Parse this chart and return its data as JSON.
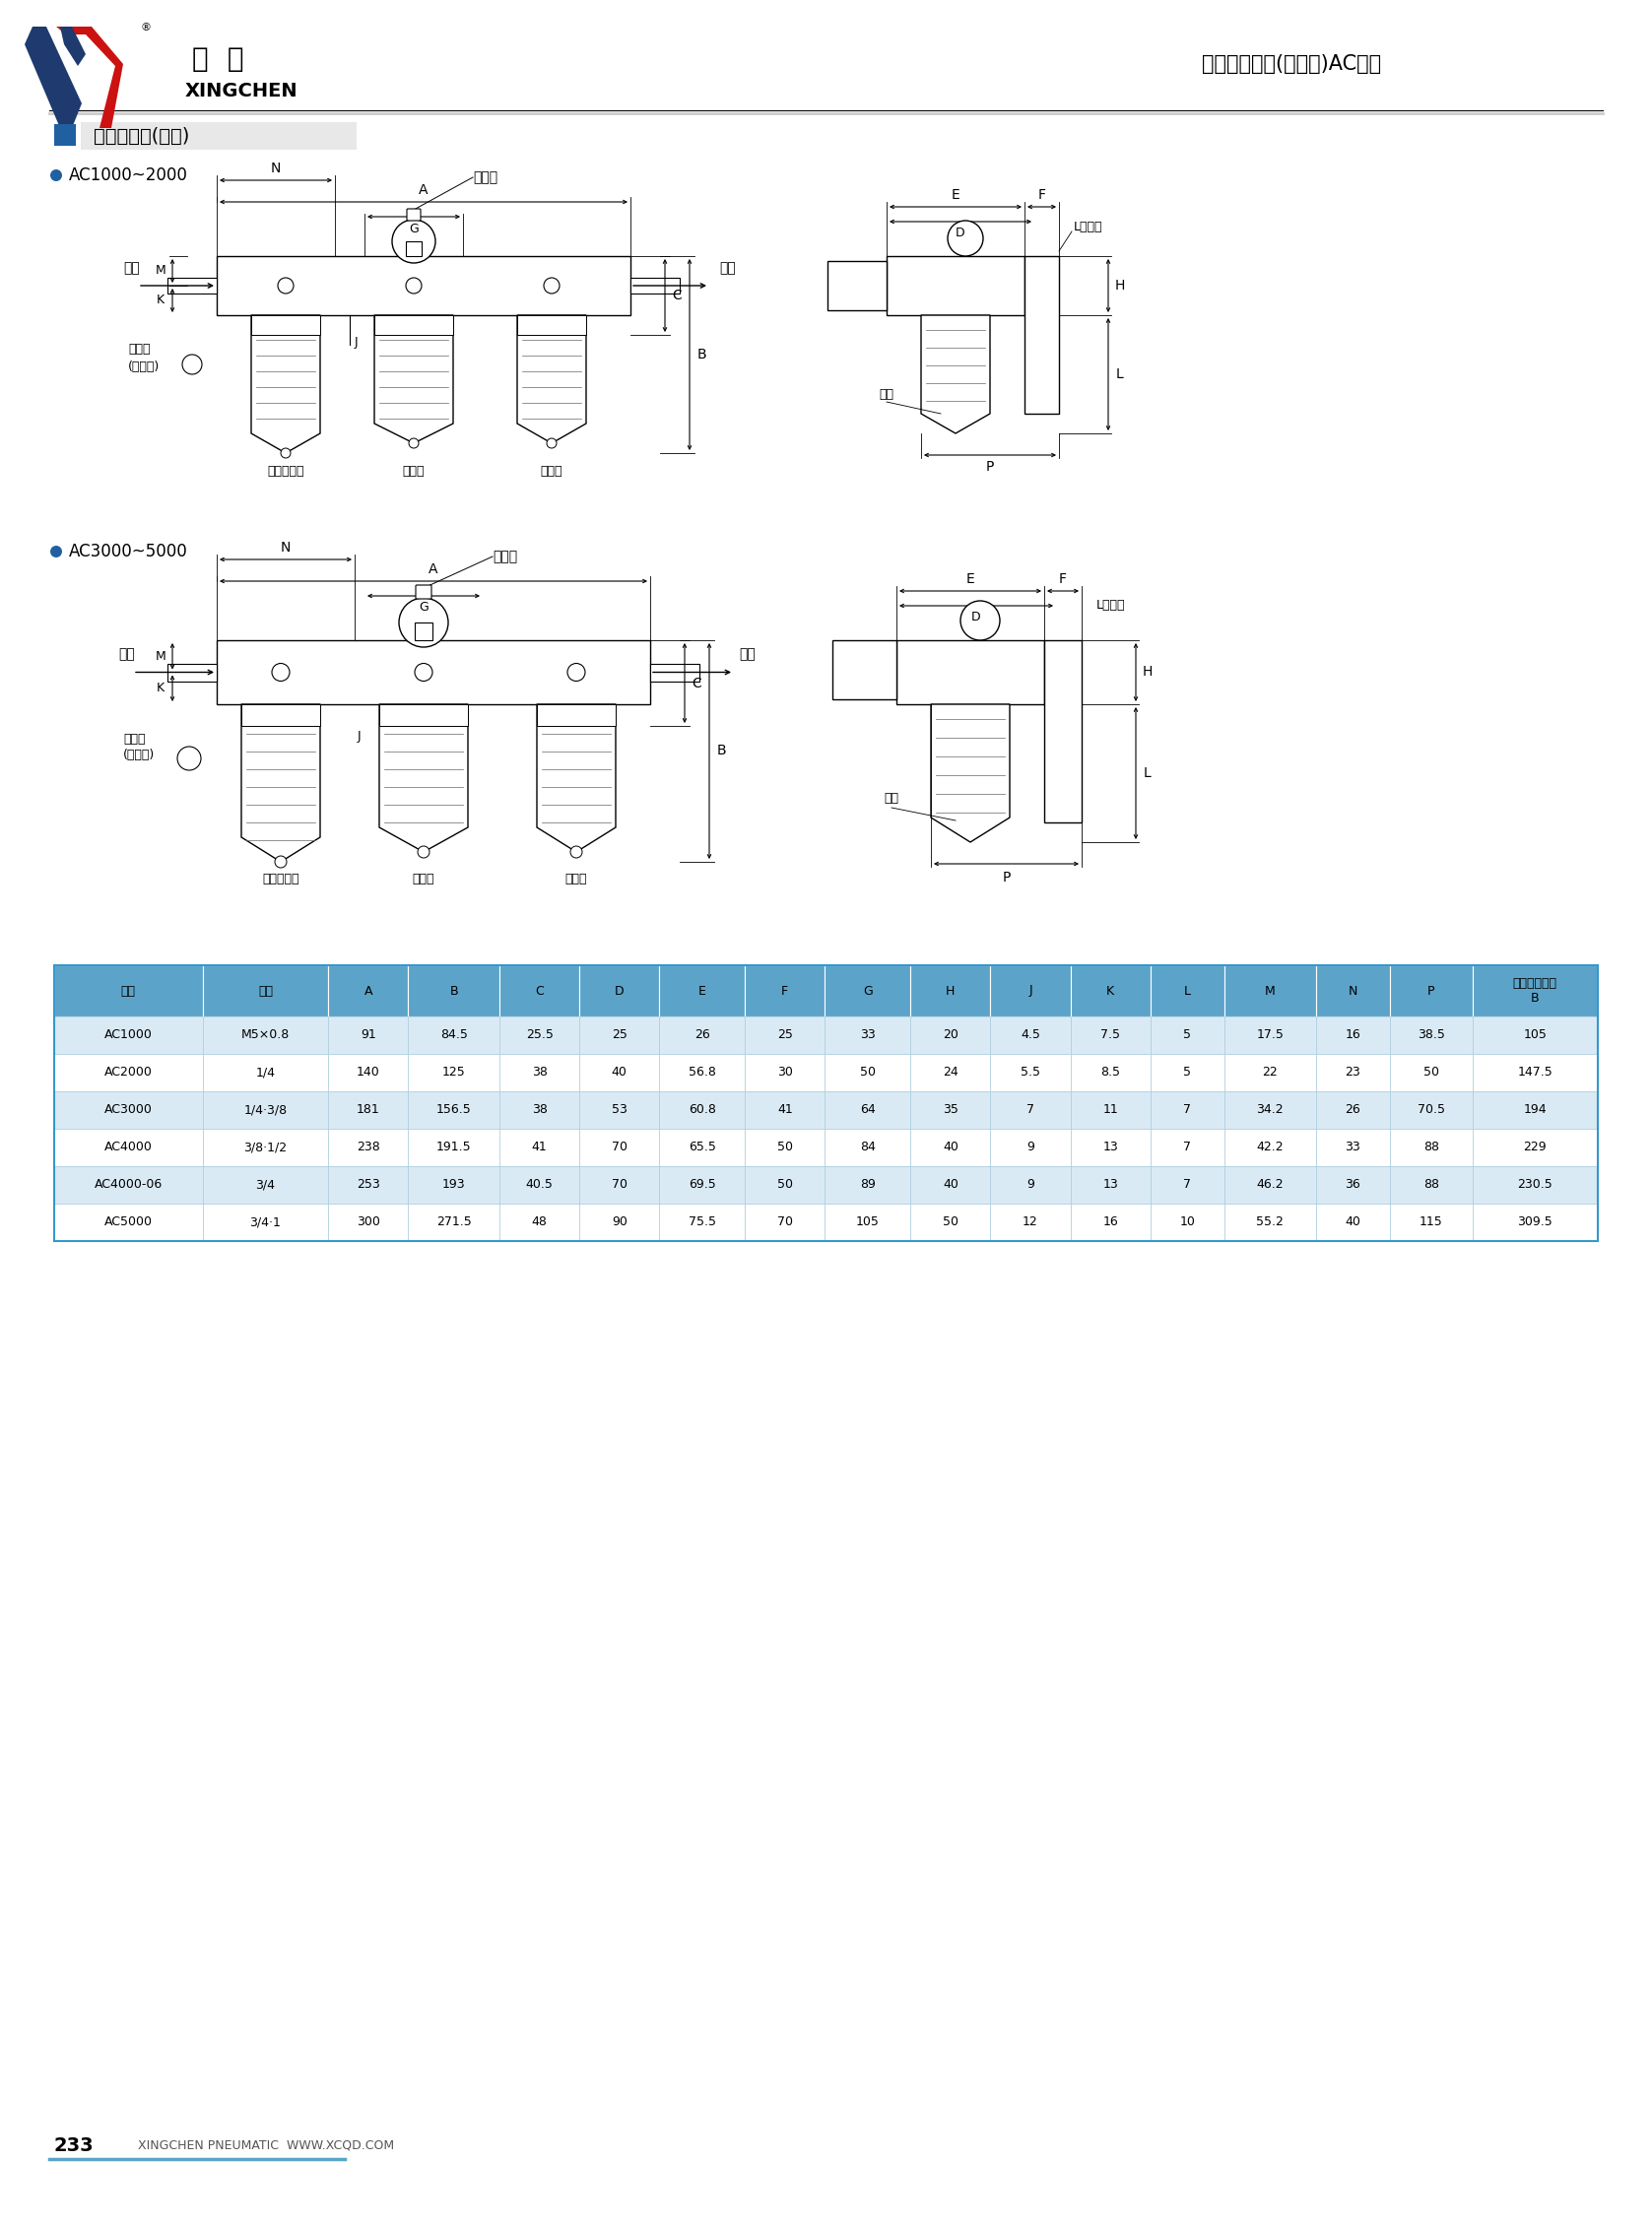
{
  "page_title": "空气过滤组合(三联件)AC系列",
  "section_title": "外形尺寸图(毫米)",
  "series1_title": "AC1000~2000",
  "series2_title": "AC3000~5000",
  "table_headers": [
    "型号",
    "口径",
    "A",
    "B",
    "C",
    "D",
    "E",
    "F",
    "G",
    "H",
    "J",
    "K",
    "L",
    "M",
    "N",
    "P",
    "连自动排水器\nB"
  ],
  "table_rows": [
    [
      "AC1000",
      "M5×0.8",
      "91",
      "84.5",
      "25.5",
      "25",
      "26",
      "25",
      "33",
      "20",
      "4.5",
      "7.5",
      "5",
      "17.5",
      "16",
      "38.5",
      "105"
    ],
    [
      "AC2000",
      "1/4",
      "140",
      "125",
      "38",
      "40",
      "56.8",
      "30",
      "50",
      "24",
      "5.5",
      "8.5",
      "5",
      "22",
      "23",
      "50",
      "147.5"
    ],
    [
      "AC3000",
      "1/4·3/8",
      "181",
      "156.5",
      "38",
      "53",
      "60.8",
      "41",
      "64",
      "35",
      "7",
      "11",
      "7",
      "34.2",
      "26",
      "70.5",
      "194"
    ],
    [
      "AC4000",
      "3/8·1/2",
      "238",
      "191.5",
      "41",
      "70",
      "65.5",
      "50",
      "84",
      "40",
      "9",
      "13",
      "7",
      "42.2",
      "33",
      "88",
      "229"
    ],
    [
      "AC4000-06",
      "3/4",
      "253",
      "193",
      "40.5",
      "70",
      "69.5",
      "50",
      "89",
      "40",
      "9",
      "13",
      "7",
      "46.2",
      "36",
      "88",
      "230.5"
    ],
    [
      "AC5000",
      "3/4·1",
      "300",
      "271.5",
      "48",
      "90",
      "75.5",
      "70",
      "105",
      "50",
      "12",
      "16",
      "10",
      "55.2",
      "40",
      "115",
      "309.5"
    ]
  ],
  "header_bg": "#5ba3c9",
  "row_bg_odd": "#daeaf5",
  "row_bg_even": "#ffffff",
  "page_num": "233",
  "footer_text": "XINGCHEN PNEUMATIC  WWW.XCQD.COM",
  "bg_color": "#ffffff"
}
